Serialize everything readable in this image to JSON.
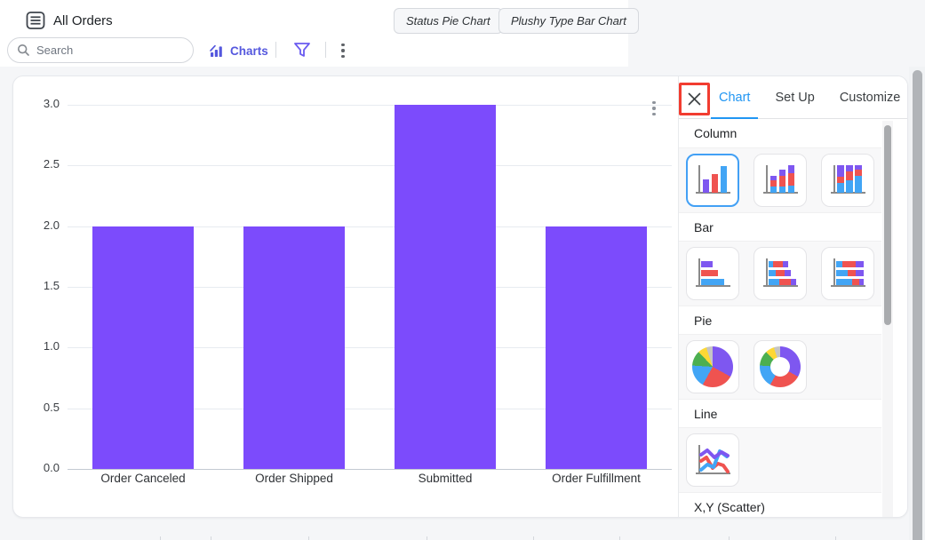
{
  "header": {
    "title": "All Orders",
    "search": {
      "placeholder": "Search"
    },
    "charts_button": "Charts",
    "saved_charts": [
      "Status Pie Chart",
      "Plushy Type Bar Chart"
    ]
  },
  "panel": {
    "tabs": [
      "Chart",
      "Set Up",
      "Customize"
    ],
    "active_tab": "Chart",
    "sections": {
      "column": "Column",
      "bar": "Bar",
      "pie": "Pie",
      "line": "Line",
      "scatter": "X,Y (Scatter)"
    }
  },
  "chart_data": {
    "type": "bar",
    "title": "",
    "xlabel": "",
    "ylabel": "",
    "categories": [
      "Order Canceled",
      "Order Shipped",
      "Submitted",
      "Order Fulfillment"
    ],
    "values": [
      2,
      2,
      3,
      2
    ],
    "ylim": [
      0,
      3
    ],
    "yticks": [
      0,
      0.5,
      1,
      1.5,
      2,
      2.5,
      3
    ],
    "grid": true,
    "legend": false,
    "series_color": "#7c4bfc"
  },
  "colors": {
    "accent_indigo": "#5558de",
    "tab_active_blue": "#2196f3",
    "bar_purple": "#7c4bfc",
    "annotation_red": "#f23c30",
    "selected_tile_border": "#42a0f5"
  }
}
